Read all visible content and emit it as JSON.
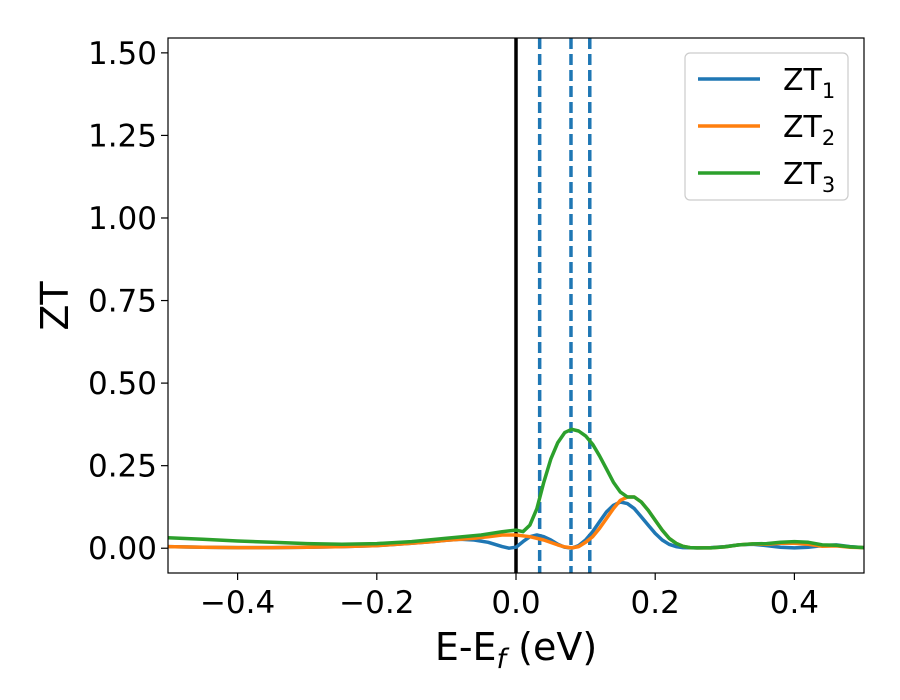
{
  "chart_data": {
    "type": "line",
    "xlabel_main": "E-E",
    "xlabel_sub": "f",
    "xlabel_unit": " (eV)",
    "ylabel": "ZT",
    "xlim": [
      -0.5,
      0.5
    ],
    "ylim": [
      -0.075,
      1.545
    ],
    "xticks": [
      -0.4,
      -0.2,
      0.0,
      0.2,
      0.4
    ],
    "xtick_labels": [
      "−0.4",
      "−0.2",
      "0.0",
      "0.2",
      "0.4"
    ],
    "yticks": [
      0.0,
      0.25,
      0.5,
      0.75,
      1.0,
      1.25,
      1.5
    ],
    "ytick_labels": [
      "0.00",
      "0.25",
      "0.50",
      "0.75",
      "1.00",
      "1.25",
      "1.50"
    ],
    "grid": false,
    "legend_position": "top-right",
    "vlines": [
      {
        "x": 0.0,
        "style": "solid",
        "color": "#000000"
      },
      {
        "x": 0.034,
        "style": "dashed",
        "color": "#1f77b4"
      },
      {
        "x": 0.079,
        "style": "dashed",
        "color": "#1f77b4"
      },
      {
        "x": 0.106,
        "style": "dashed",
        "color": "#1f77b4"
      }
    ],
    "series": [
      {
        "name": "ZT",
        "sub": "1",
        "color": "#1f77b4",
        "x": [
          -0.5,
          -0.45,
          -0.4,
          -0.35,
          -0.3,
          -0.25,
          -0.2,
          -0.15,
          -0.12,
          -0.1,
          -0.08,
          -0.06,
          -0.04,
          -0.02,
          -0.01,
          0.0,
          0.01,
          0.02,
          0.03,
          0.04,
          0.05,
          0.06,
          0.07,
          0.08,
          0.09,
          0.1,
          0.11,
          0.12,
          0.13,
          0.14,
          0.15,
          0.16,
          0.17,
          0.18,
          0.19,
          0.2,
          0.21,
          0.22,
          0.23,
          0.24,
          0.26,
          0.28,
          0.3,
          0.32,
          0.34,
          0.36,
          0.38,
          0.4,
          0.42,
          0.44,
          0.46,
          0.48,
          0.5
        ],
        "y": [
          0.005,
          0.003,
          0.002,
          0.002,
          0.003,
          0.005,
          0.008,
          0.015,
          0.02,
          0.024,
          0.027,
          0.025,
          0.018,
          0.005,
          0.0,
          0.003,
          0.02,
          0.035,
          0.04,
          0.035,
          0.025,
          0.012,
          0.003,
          0.0,
          0.008,
          0.025,
          0.05,
          0.08,
          0.11,
          0.13,
          0.14,
          0.135,
          0.12,
          0.095,
          0.07,
          0.045,
          0.025,
          0.012,
          0.005,
          0.002,
          0.001,
          0.002,
          0.005,
          0.01,
          0.012,
          0.008,
          0.003,
          0.001,
          0.003,
          0.008,
          0.01,
          0.005,
          0.002
        ]
      },
      {
        "name": "ZT",
        "sub": "2",
        "color": "#ff7f0e",
        "x": [
          -0.5,
          -0.45,
          -0.4,
          -0.35,
          -0.3,
          -0.25,
          -0.2,
          -0.15,
          -0.12,
          -0.1,
          -0.08,
          -0.06,
          -0.04,
          -0.02,
          0.0,
          0.02,
          0.04,
          0.06,
          0.07,
          0.08,
          0.09,
          0.1,
          0.11,
          0.12,
          0.13,
          0.14,
          0.15,
          0.16,
          0.17,
          0.18,
          0.19,
          0.2,
          0.21,
          0.22,
          0.23,
          0.24,
          0.25,
          0.26,
          0.28,
          0.3,
          0.32,
          0.34,
          0.36,
          0.38,
          0.4,
          0.42,
          0.44,
          0.46,
          0.48,
          0.5
        ],
        "y": [
          0.005,
          0.003,
          0.002,
          0.002,
          0.003,
          0.005,
          0.008,
          0.015,
          0.02,
          0.024,
          0.027,
          0.03,
          0.035,
          0.04,
          0.04,
          0.035,
          0.025,
          0.01,
          0.004,
          0.001,
          0.005,
          0.018,
          0.035,
          0.06,
          0.09,
          0.12,
          0.145,
          0.155,
          0.155,
          0.14,
          0.115,
          0.085,
          0.055,
          0.03,
          0.015,
          0.006,
          0.002,
          0.001,
          0.001,
          0.004,
          0.01,
          0.013,
          0.012,
          0.015,
          0.015,
          0.012,
          0.006,
          0.007,
          0.003,
          0.002
        ]
      },
      {
        "name": "ZT",
        "sub": "3",
        "color": "#2ca02c",
        "x": [
          -0.5,
          -0.45,
          -0.4,
          -0.35,
          -0.3,
          -0.25,
          -0.2,
          -0.15,
          -0.1,
          -0.05,
          -0.02,
          0.0,
          0.01,
          0.02,
          0.03,
          0.04,
          0.05,
          0.06,
          0.07,
          0.08,
          0.09,
          0.1,
          0.11,
          0.12,
          0.13,
          0.14,
          0.15,
          0.16,
          0.17,
          0.18,
          0.19,
          0.2,
          0.21,
          0.22,
          0.23,
          0.24,
          0.25,
          0.26,
          0.28,
          0.3,
          0.32,
          0.34,
          0.36,
          0.38,
          0.4,
          0.42,
          0.44,
          0.46,
          0.48,
          0.5
        ],
        "y": [
          0.032,
          0.027,
          0.022,
          0.018,
          0.014,
          0.012,
          0.014,
          0.02,
          0.03,
          0.04,
          0.05,
          0.055,
          0.05,
          0.07,
          0.12,
          0.2,
          0.27,
          0.32,
          0.35,
          0.36,
          0.355,
          0.34,
          0.315,
          0.28,
          0.24,
          0.2,
          0.17,
          0.155,
          0.155,
          0.14,
          0.115,
          0.085,
          0.055,
          0.03,
          0.015,
          0.006,
          0.002,
          0.001,
          0.001,
          0.004,
          0.01,
          0.013,
          0.014,
          0.018,
          0.02,
          0.018,
          0.01,
          0.009,
          0.004,
          0.002
        ]
      }
    ]
  }
}
